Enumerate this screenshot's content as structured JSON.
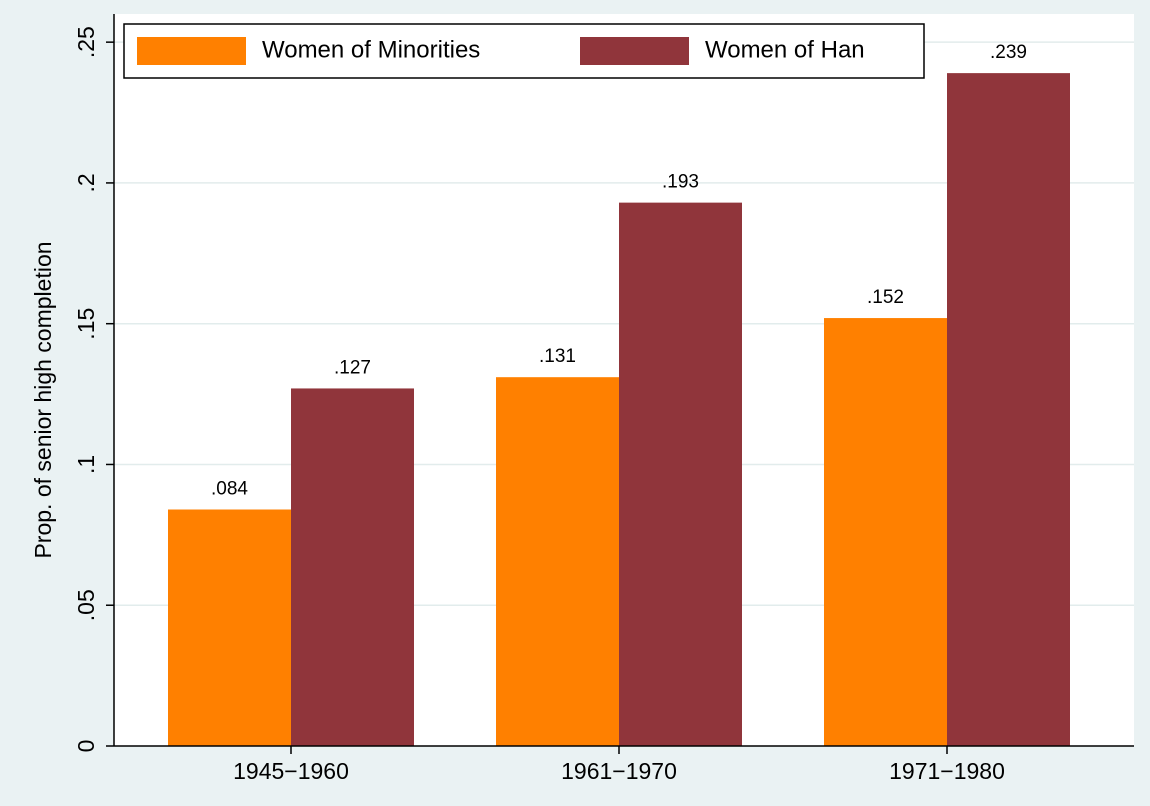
{
  "chart_data": {
    "type": "bar",
    "y_label": "Prop. of senior high completion",
    "categories": [
      "1945−1960",
      "1961−1970",
      "1971−1980"
    ],
    "series": [
      {
        "name": "Women of Minorities",
        "color": "#ff8000",
        "values": [
          0.084,
          0.131,
          0.152
        ],
        "value_labels": [
          ".084",
          ".131",
          ".152"
        ]
      },
      {
        "name": "Women of Han",
        "color": "#90353b",
        "values": [
          0.127,
          0.193,
          0.239
        ],
        "value_labels": [
          ".127",
          ".193",
          ".239"
        ]
      }
    ],
    "ylim": [
      0,
      0.26
    ],
    "yticks": [
      0,
      {
        "value": 0.05,
        "label": ".05"
      },
      {
        "value": 0.1,
        "label": ".1"
      },
      {
        "value": 0.15,
        "label": ".15"
      },
      {
        "value": 0.2,
        "label": ".2"
      },
      {
        "value": 0.25,
        "label": ".25"
      }
    ],
    "grid": true
  }
}
